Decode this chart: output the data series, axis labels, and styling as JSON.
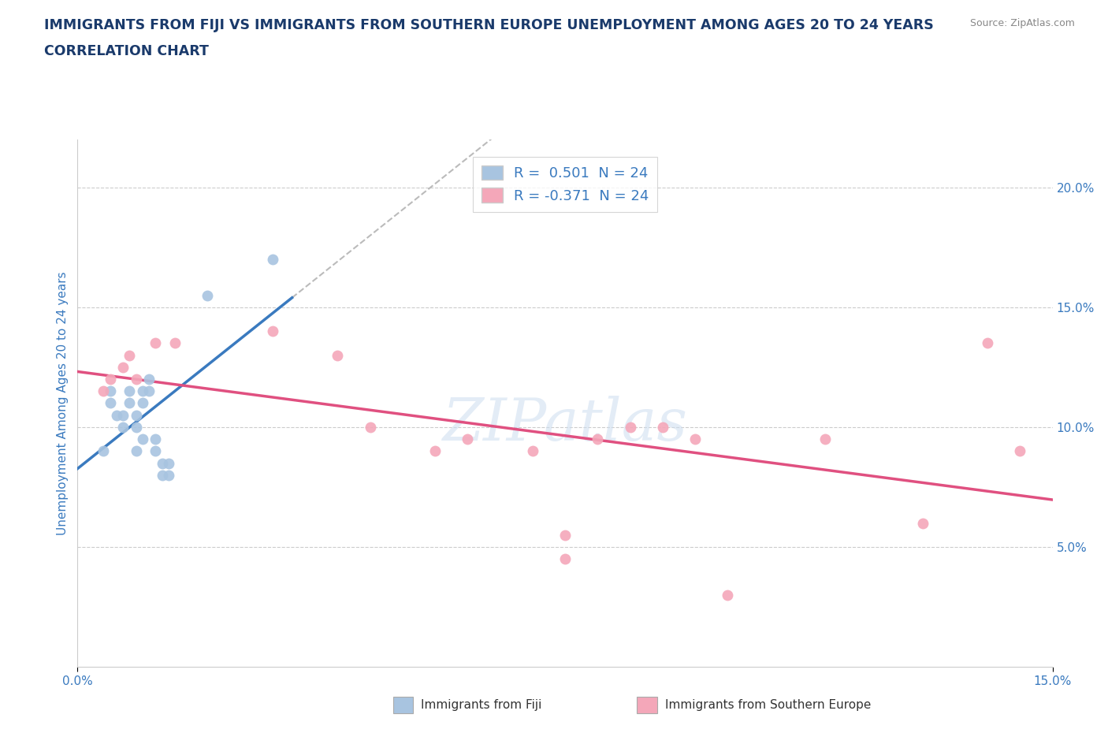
{
  "title_line1": "IMMIGRANTS FROM FIJI VS IMMIGRANTS FROM SOUTHERN EUROPE UNEMPLOYMENT AMONG AGES 20 TO 24 YEARS",
  "title_line2": "CORRELATION CHART",
  "source": "Source: ZipAtlas.com",
  "ylabel": "Unemployment Among Ages 20 to 24 years",
  "xlim": [
    0.0,
    0.15
  ],
  "ylim": [
    0.0,
    0.22
  ],
  "yticks": [
    0.05,
    0.1,
    0.15,
    0.2
  ],
  "ytick_labels": [
    "5.0%",
    "10.0%",
    "15.0%",
    "20.0%"
  ],
  "fiji_R": 0.501,
  "fiji_N": 24,
  "south_europe_R": -0.371,
  "south_europe_N": 24,
  "fiji_color": "#a8c4e0",
  "south_europe_color": "#f4a7b9",
  "fiji_line_color": "#3a7abf",
  "south_europe_line_color": "#e05080",
  "watermark": "ZIPatlas",
  "fiji_x": [
    0.004,
    0.005,
    0.005,
    0.006,
    0.007,
    0.007,
    0.008,
    0.008,
    0.009,
    0.009,
    0.009,
    0.01,
    0.01,
    0.01,
    0.011,
    0.011,
    0.012,
    0.012,
    0.013,
    0.013,
    0.014,
    0.014,
    0.02,
    0.03
  ],
  "fiji_y": [
    0.09,
    0.115,
    0.11,
    0.105,
    0.105,
    0.1,
    0.115,
    0.11,
    0.105,
    0.1,
    0.09,
    0.115,
    0.11,
    0.095,
    0.12,
    0.115,
    0.095,
    0.09,
    0.085,
    0.08,
    0.085,
    0.08,
    0.155,
    0.17
  ],
  "se_x": [
    0.004,
    0.005,
    0.007,
    0.008,
    0.009,
    0.012,
    0.015,
    0.03,
    0.04,
    0.045,
    0.055,
    0.06,
    0.07,
    0.075,
    0.075,
    0.08,
    0.085,
    0.09,
    0.095,
    0.1,
    0.115,
    0.13,
    0.14,
    0.145
  ],
  "se_y": [
    0.115,
    0.12,
    0.125,
    0.13,
    0.12,
    0.135,
    0.135,
    0.14,
    0.13,
    0.1,
    0.09,
    0.095,
    0.09,
    0.045,
    0.055,
    0.095,
    0.1,
    0.1,
    0.095,
    0.03,
    0.095,
    0.06,
    0.135,
    0.09
  ],
  "title_color": "#1a3a6b",
  "axis_label_color": "#3a7abf",
  "tick_color": "#3a7abf",
  "legend_label_color": "#3a7abf"
}
